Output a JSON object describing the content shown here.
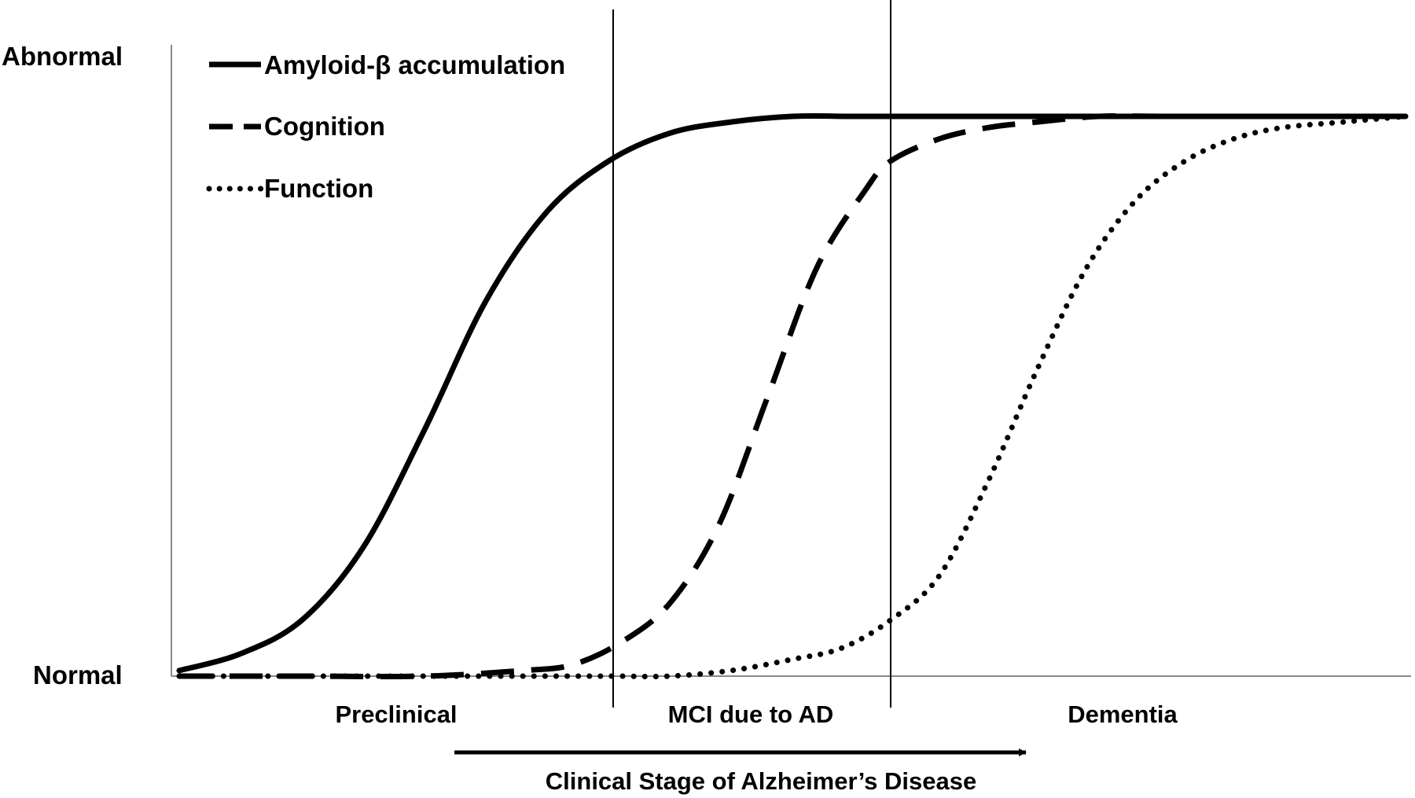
{
  "chart_data": {
    "type": "line",
    "title": "",
    "xlabel": "Clinical Stage of Alzheimer’s Disease",
    "ylabel": "",
    "y_tick_labels": [
      "Normal",
      "Abnormal"
    ],
    "xlim": [
      0,
      100
    ],
    "ylim": [
      0,
      1.1
    ],
    "grid": false,
    "legend_position": "top-left",
    "stage_boundaries": [
      35.5,
      58
    ],
    "stages": [
      "Preclinical",
      "MCI due to AD",
      "Dementia"
    ],
    "series": [
      {
        "name": "Amyloid-β accumulation",
        "line_style": "solid",
        "x": [
          0,
          5,
          10,
          15,
          20,
          25,
          30,
          35,
          40,
          45,
          50,
          55,
          60,
          70,
          80,
          90,
          100
        ],
        "y": [
          0.01,
          0.04,
          0.1,
          0.23,
          0.44,
          0.67,
          0.83,
          0.92,
          0.97,
          0.99,
          1.0,
          1.0,
          1.0,
          1.0,
          1.0,
          1.0,
          1.0
        ]
      },
      {
        "name": "Cognition",
        "line_style": "dashed",
        "x": [
          0,
          10,
          20,
          28,
          32,
          36,
          40,
          44,
          48,
          52,
          56,
          58,
          62,
          66,
          70,
          75,
          80,
          90,
          100
        ],
        "y": [
          0.0,
          0.0,
          0.0,
          0.01,
          0.02,
          0.06,
          0.13,
          0.27,
          0.5,
          0.73,
          0.87,
          0.92,
          0.96,
          0.98,
          0.99,
          1.0,
          1.0,
          1.0,
          1.0
        ]
      },
      {
        "name": "Function",
        "line_style": "dotted",
        "x": [
          0,
          10,
          20,
          30,
          35.5,
          40,
          45,
          50,
          54,
          58,
          62,
          66,
          70,
          74,
          78,
          82,
          86,
          90,
          95,
          100
        ],
        "y": [
          0.0,
          0.0,
          0.0,
          0.0,
          0.0,
          0.0,
          0.01,
          0.03,
          0.05,
          0.1,
          0.18,
          0.35,
          0.55,
          0.73,
          0.85,
          0.92,
          0.96,
          0.98,
          0.99,
          1.0
        ]
      }
    ]
  }
}
